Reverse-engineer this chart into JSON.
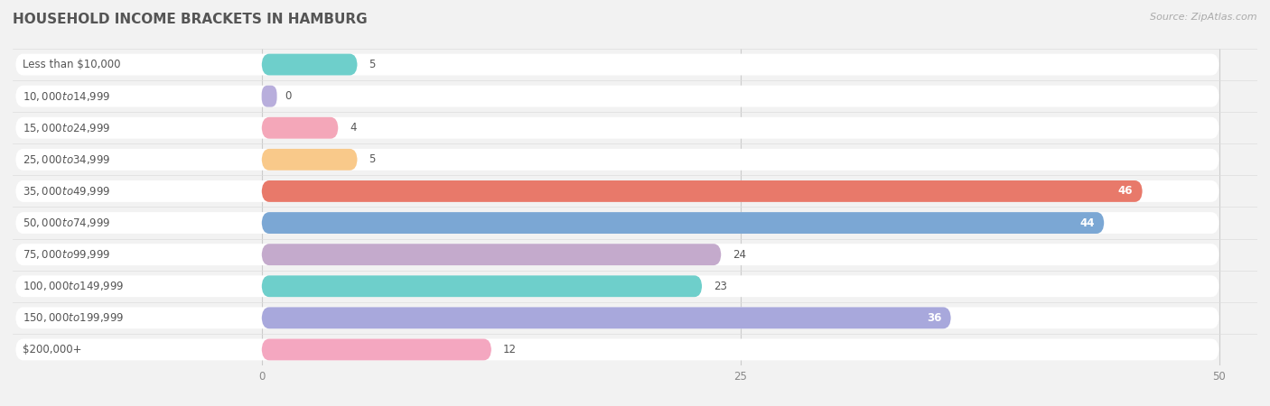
{
  "title": "HOUSEHOLD INCOME BRACKETS IN HAMBURG",
  "source": "Source: ZipAtlas.com",
  "categories": [
    "Less than $10,000",
    "$10,000 to $14,999",
    "$15,000 to $24,999",
    "$25,000 to $34,999",
    "$35,000 to $49,999",
    "$50,000 to $74,999",
    "$75,000 to $99,999",
    "$100,000 to $149,999",
    "$150,000 to $199,999",
    "$200,000+"
  ],
  "values": [
    5,
    0,
    4,
    5,
    46,
    44,
    24,
    23,
    36,
    12
  ],
  "bar_colors": [
    "#6ECFCB",
    "#B8AEDC",
    "#F4A7B9",
    "#F9C98A",
    "#E8796A",
    "#7BA7D4",
    "#C4AACC",
    "#6ECFCB",
    "#A8A8DC",
    "#F4A7C0"
  ],
  "xlim": [
    0,
    50
  ],
  "xticks": [
    0,
    25,
    50
  ],
  "background_color": "#f2f2f2",
  "bar_bg_color": "#ffffff",
  "bar_height": 0.68,
  "title_fontsize": 11,
  "label_fontsize": 8.5,
  "value_fontsize": 8.5,
  "source_fontsize": 8
}
